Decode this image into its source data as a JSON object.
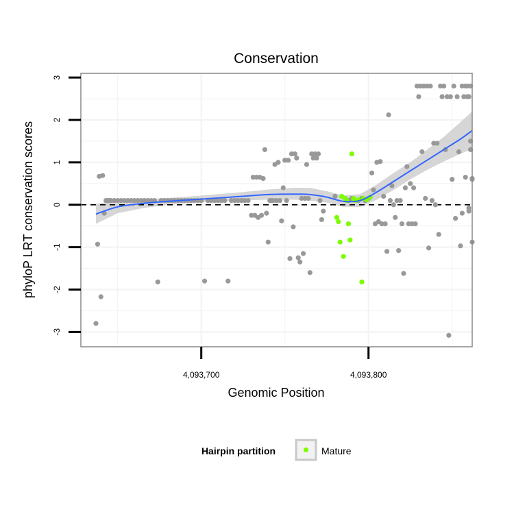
{
  "chart_data": {
    "type": "scatter",
    "title": "Conservation",
    "xlabel": "Genomic Position",
    "ylabel": "phyloP LRT conservation scores",
    "xlim": [
      4093628,
      4093862
    ],
    "ylim": [
      -3.35,
      3.1
    ],
    "x_ticks": [
      {
        "value": 4093700,
        "label": "4,093,700"
      },
      {
        "value": 4093800,
        "label": "4,093,800"
      }
    ],
    "y_ticks": [
      {
        "value": -3,
        "label": "-3"
      },
      {
        "value": -2,
        "label": "-2"
      },
      {
        "value": -1,
        "label": "-1"
      },
      {
        "value": 0,
        "label": "0"
      },
      {
        "value": 1,
        "label": "1"
      },
      {
        "value": 2,
        "label": "2"
      },
      {
        "value": 3,
        "label": "3"
      }
    ],
    "grid": true,
    "reference_line": {
      "y": 0,
      "style": "dashed",
      "color": "#000000"
    },
    "colors": {
      "points": "#999999",
      "mature": "#7CFC00",
      "smooth_line": "#3366FF",
      "ribbon": "#C8C8C8",
      "panel_border": "#888888",
      "grid": "#F3F3F3"
    },
    "series": [
      {
        "points": [
          [
            4093637,
            -2.8
          ],
          [
            4093638,
            -0.93
          ],
          [
            4093639,
            0.67
          ],
          [
            4093640,
            -2.17
          ],
          [
            4093641,
            0.69
          ],
          [
            4093642,
            -0.2
          ],
          [
            4093643,
            0.1
          ],
          [
            4093644,
            0.1
          ],
          [
            4093645,
            0.1
          ],
          [
            4093646,
            0.1
          ],
          [
            4093648,
            0.1
          ],
          [
            4093650,
            0.1
          ],
          [
            4093652,
            0.1
          ],
          [
            4093654,
            0.1
          ],
          [
            4093656,
            0.1
          ],
          [
            4093658,
            0.1
          ],
          [
            4093660,
            0.1
          ],
          [
            4093662,
            0.1
          ],
          [
            4093664,
            0.1
          ],
          [
            4093666,
            0.1
          ],
          [
            4093668,
            0.1
          ],
          [
            4093670,
            0.1
          ],
          [
            4093672,
            0.1
          ],
          [
            4093674,
            -1.82
          ],
          [
            4093676,
            0.1
          ],
          [
            4093678,
            0.1
          ],
          [
            4093680,
            0.1
          ],
          [
            4093682,
            0.1
          ],
          [
            4093684,
            0.1
          ],
          [
            4093686,
            0.1
          ],
          [
            4093688,
            0.1
          ],
          [
            4093690,
            0.1
          ],
          [
            4093692,
            0.1
          ],
          [
            4093694,
            0.1
          ],
          [
            4093696,
            0.1
          ],
          [
            4093698,
            0.1
          ],
          [
            4093700,
            0.1
          ],
          [
            4093702,
            -1.8
          ],
          [
            4093704,
            0.1
          ],
          [
            4093706,
            0.1
          ],
          [
            4093708,
            0.1
          ],
          [
            4093710,
            0.1
          ],
          [
            4093712,
            0.1
          ],
          [
            4093714,
            0.1
          ],
          [
            4093716,
            -1.8
          ],
          [
            4093718,
            0.1
          ],
          [
            4093720,
            0.1
          ],
          [
            4093722,
            0.1
          ],
          [
            4093724,
            0.1
          ],
          [
            4093726,
            0.1
          ],
          [
            4093728,
            0.1
          ],
          [
            4093730,
            -0.25
          ],
          [
            4093731,
            0.65
          ],
          [
            4093732,
            -0.25
          ],
          [
            4093733,
            0.65
          ],
          [
            4093734,
            -0.3
          ],
          [
            4093735,
            0.65
          ],
          [
            4093736,
            -0.25
          ],
          [
            4093737,
            0.62
          ],
          [
            4093738,
            1.3
          ],
          [
            4093739,
            -0.2
          ],
          [
            4093740,
            -0.88
          ],
          [
            4093741,
            0.1
          ],
          [
            4093742,
            0.1
          ],
          [
            4093743,
            0.1
          ],
          [
            4093744,
            0.95
          ],
          [
            4093745,
            0.1
          ],
          [
            4093746,
            1.0
          ],
          [
            4093747,
            0.1
          ],
          [
            4093748,
            -0.38
          ],
          [
            4093749,
            0.4
          ],
          [
            4093750,
            1.05
          ],
          [
            4093751,
            0.1
          ],
          [
            4093752,
            1.05
          ],
          [
            4093753,
            -1.27
          ],
          [
            4093754,
            1.2
          ],
          [
            4093755,
            -0.52
          ],
          [
            4093756,
            1.2
          ],
          [
            4093757,
            1.1
          ],
          [
            4093758,
            -1.25
          ],
          [
            4093759,
            -1.35
          ],
          [
            4093760,
            0.15
          ],
          [
            4093761,
            -1.15
          ],
          [
            4093762,
            0.15
          ],
          [
            4093763,
            0.95
          ],
          [
            4093764,
            0.15
          ],
          [
            4093765,
            -1.6
          ],
          [
            4093766,
            1.2
          ],
          [
            4093767,
            1.1
          ],
          [
            4093768,
            1.2
          ],
          [
            4093769,
            1.1
          ],
          [
            4093770,
            1.2
          ],
          [
            4093771,
            0.1
          ],
          [
            4093772,
            -0.35
          ],
          [
            4093773,
            -0.15
          ],
          [
            4093780,
            0.2
          ],
          [
            4093786,
            0.15
          ],
          [
            4093788,
            0.1
          ],
          [
            4093790,
            0.15
          ],
          [
            4093792,
            0.1
          ],
          [
            4093794,
            0.1
          ],
          [
            4093796,
            0.15
          ],
          [
            4093798,
            0.1
          ],
          [
            4093800,
            0.15
          ],
          [
            4093802,
            0.75
          ],
          [
            4093803,
            0.35
          ],
          [
            4093804,
            -0.45
          ],
          [
            4093805,
            1.0
          ],
          [
            4093806,
            -0.4
          ],
          [
            4093807,
            1.02
          ],
          [
            4093808,
            -0.45
          ],
          [
            4093809,
            0.2
          ],
          [
            4093810,
            -0.45
          ],
          [
            4093811,
            -1.1
          ],
          [
            4093812,
            2.12
          ],
          [
            4093813,
            0.1
          ],
          [
            4093814,
            0.45
          ],
          [
            4093815,
            0.0
          ],
          [
            4093816,
            -0.3
          ],
          [
            4093817,
            0.1
          ],
          [
            4093818,
            -1.08
          ],
          [
            4093819,
            0.1
          ],
          [
            4093820,
            -0.45
          ],
          [
            4093821,
            -1.62
          ],
          [
            4093822,
            0.4
          ],
          [
            4093823,
            0.9
          ],
          [
            4093824,
            -0.45
          ],
          [
            4093825,
            0.5
          ],
          [
            4093826,
            -0.45
          ],
          [
            4093827,
            0.4
          ],
          [
            4093828,
            -0.45
          ],
          [
            4093829,
            2.8
          ],
          [
            4093830,
            2.55
          ],
          [
            4093831,
            2.8
          ],
          [
            4093832,
            1.25
          ],
          [
            4093833,
            2.8
          ],
          [
            4093834,
            0.15
          ],
          [
            4093835,
            2.8
          ],
          [
            4093836,
            -1.02
          ],
          [
            4093837,
            2.8
          ],
          [
            4093838,
            0.1
          ],
          [
            4093839,
            1.45
          ],
          [
            4093840,
            0.0
          ],
          [
            4093841,
            1.45
          ],
          [
            4093842,
            -0.7
          ],
          [
            4093843,
            2.8
          ],
          [
            4093844,
            2.55
          ],
          [
            4093845,
            2.8
          ],
          [
            4093846,
            1.3
          ],
          [
            4093847,
            2.55
          ],
          [
            4093848,
            -3.08
          ],
          [
            4093849,
            2.55
          ],
          [
            4093850,
            0.6
          ],
          [
            4093851,
            2.8
          ],
          [
            4093852,
            -0.32
          ],
          [
            4093853,
            2.55
          ],
          [
            4093854,
            1.25
          ],
          [
            4093855,
            -0.97
          ],
          [
            4093856,
            2.8
          ],
          [
            4093857,
            2.55
          ],
          [
            4093858,
            0.65
          ],
          [
            4093859,
            2.55
          ],
          [
            4093860,
            -0.08
          ],
          [
            4093861,
            1.3
          ],
          [
            4093862,
            0.62
          ],
          [
            4093856,
            -0.2
          ],
          [
            4093858,
            2.8
          ],
          [
            4093860,
            2.55
          ],
          [
            4093861,
            2.8
          ],
          [
            4093862,
            -0.88
          ],
          [
            4093861,
            1.5
          ],
          [
            4093862,
            0.6
          ],
          [
            4093860,
            -0.15
          ],
          [
            4093859,
            2.8
          ]
        ]
      },
      {
        "name": "Mature",
        "points": [
          [
            4093781,
            -0.3
          ],
          [
            4093782,
            -0.4
          ],
          [
            4093783,
            -0.88
          ],
          [
            4093784,
            0.2
          ],
          [
            4093785,
            -1.22
          ],
          [
            4093786,
            0.15
          ],
          [
            4093787,
            0.1
          ],
          [
            4093788,
            -0.45
          ],
          [
            4093789,
            -0.83
          ],
          [
            4093790,
            1.2
          ],
          [
            4093791,
            0.15
          ],
          [
            4093792,
            0.1
          ],
          [
            4093794,
            0.12
          ],
          [
            4093796,
            -1.82
          ],
          [
            4093797,
            0.15
          ],
          [
            4093799,
            0.12
          ],
          [
            4093801,
            0.18
          ]
        ]
      }
    ],
    "smooth": {
      "x": [
        4093637,
        4093650,
        4093665,
        4093680,
        4093695,
        4093710,
        4093725,
        4093740,
        4093755,
        4093765,
        4093775,
        4093785,
        4093795,
        4093805,
        4093815,
        4093825,
        4093835,
        4093845,
        4093855,
        4093862
      ],
      "y": [
        -0.22,
        -0.05,
        0.03,
        0.08,
        0.12,
        0.16,
        0.2,
        0.24,
        0.25,
        0.24,
        0.18,
        0.08,
        0.1,
        0.3,
        0.55,
        0.8,
        1.05,
        1.3,
        1.55,
        1.75
      ],
      "lower": [
        -0.45,
        -0.2,
        -0.08,
        0.0,
        0.05,
        0.08,
        0.1,
        0.12,
        0.12,
        0.1,
        0.05,
        -0.05,
        -0.05,
        0.12,
        0.35,
        0.6,
        0.82,
        1.02,
        1.2,
        1.32
      ],
      "upper": [
        0.02,
        0.1,
        0.13,
        0.16,
        0.2,
        0.25,
        0.3,
        0.36,
        0.4,
        0.4,
        0.32,
        0.22,
        0.25,
        0.48,
        0.75,
        1.0,
        1.3,
        1.6,
        1.95,
        2.2
      ]
    },
    "legend": {
      "title": "Hairpin partition",
      "items": [
        {
          "label": "Mature",
          "color": "#7CFC00"
        }
      ],
      "position": "bottom"
    }
  }
}
